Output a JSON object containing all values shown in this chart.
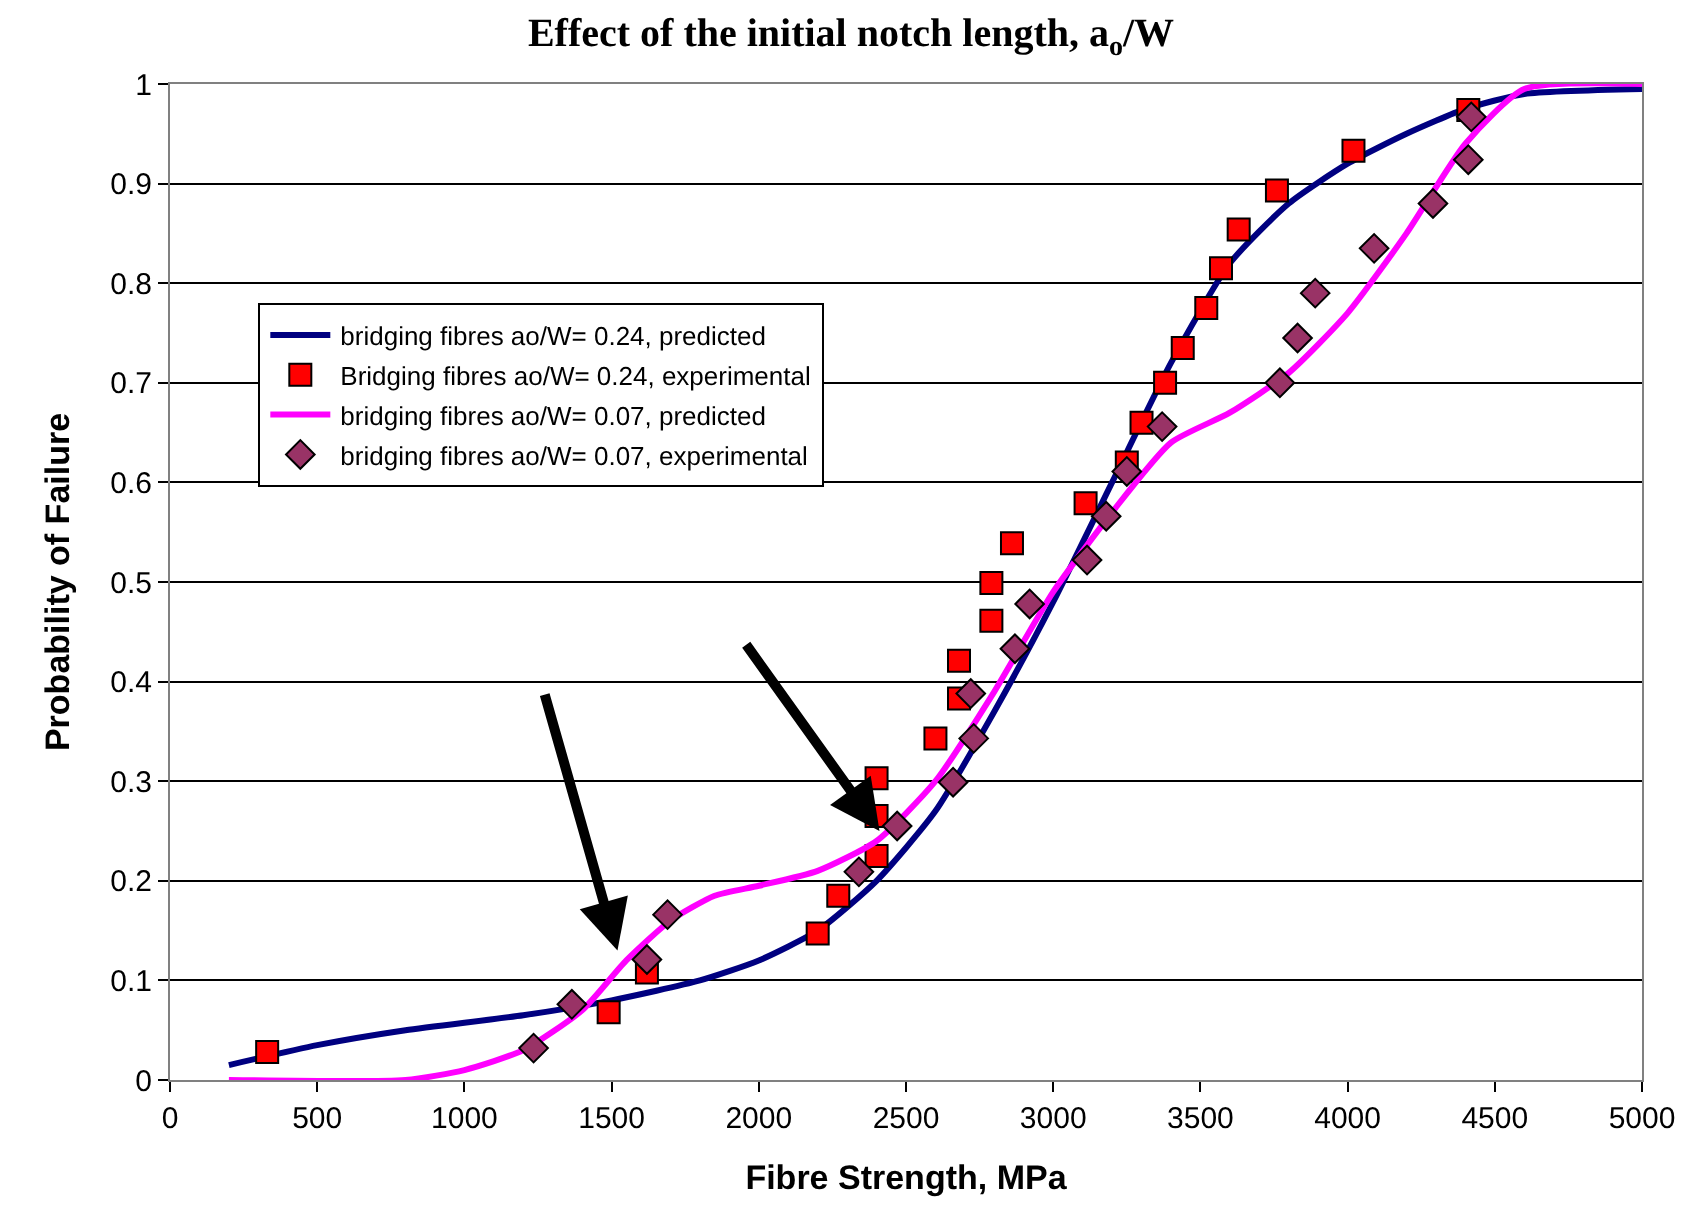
{
  "chart_data": {
    "type": "line",
    "title": "Effect of the initial notch length, a$_{o}$/W",
    "xlabel": "Fibre Strength, MPa",
    "ylabel": "Probability of Failure",
    "xlim": [
      0,
      5000
    ],
    "xticks": [
      0,
      500,
      1000,
      1500,
      2000,
      2500,
      3000,
      3500,
      4000,
      4500,
      5000
    ],
    "ylim": [
      0,
      1
    ],
    "yticks": [
      0,
      0.1,
      0.2,
      0.3,
      0.4,
      0.5,
      0.6,
      0.7,
      0.8,
      0.9,
      1
    ],
    "grid": "y",
    "legend": "top left",
    "series": [
      {
        "name": "bridging fibres ao/W= 0.24, predicted",
        "marker": "none",
        "color": "#000080",
        "x": [
          200,
          500,
          800,
          1200,
          1500,
          1800,
          2000,
          2200,
          2400,
          2600,
          2800,
          3000,
          3200,
          3400,
          3600,
          3800,
          4000,
          4200,
          4400,
          4600,
          5000
        ],
        "values": [
          0.015,
          0.035,
          0.05,
          0.065,
          0.08,
          0.1,
          0.12,
          0.15,
          0.2,
          0.27,
          0.37,
          0.48,
          0.6,
          0.72,
          0.82,
          0.88,
          0.92,
          0.95,
          0.975,
          0.99,
          0.995
        ]
      },
      {
        "name": "Bridging fibres ao/W= 0.24, experimental",
        "type": "scatter",
        "marker": "square",
        "color": "#ff0000",
        "x": [
          330,
          1490,
          1620,
          2200,
          2270,
          2400,
          2400,
          2400,
          2600,
          2680,
          2680,
          2790,
          2790,
          2860,
          3110,
          3250,
          3300,
          3380,
          3440,
          3520,
          3570,
          3630,
          3760,
          4020,
          4410
        ],
        "values": [
          0.028,
          0.068,
          0.108,
          0.147,
          0.185,
          0.225,
          0.265,
          0.303,
          0.343,
          0.383,
          0.421,
          0.461,
          0.499,
          0.539,
          0.579,
          0.62,
          0.66,
          0.7,
          0.735,
          0.775,
          0.815,
          0.854,
          0.893,
          0.933,
          0.974
        ]
      },
      {
        "name": "bridging fibres ao/W= 0.07, predicted",
        "marker": "none",
        "color": "#ff00ff",
        "x": [
          200,
          800,
          1000,
          1200,
          1400,
          1550,
          1700,
          1850,
          2000,
          2200,
          2400,
          2600,
          2800,
          3000,
          3200,
          3400,
          3600,
          3800,
          4000,
          4200,
          4400,
          4600,
          5000
        ],
        "values": [
          0,
          0,
          0.01,
          0.03,
          0.07,
          0.12,
          0.16,
          0.185,
          0.195,
          0.21,
          0.24,
          0.3,
          0.39,
          0.49,
          0.57,
          0.64,
          0.67,
          0.71,
          0.77,
          0.85,
          0.94,
          0.995,
          1.0
        ]
      },
      {
        "name": "bridging fibres ao/W= 0.07, experimental",
        "type": "scatter",
        "marker": "diamond",
        "color": "#993366",
        "x": [
          1235,
          1365,
          1620,
          1690,
          2340,
          2470,
          2660,
          2730,
          2720,
          2870,
          2920,
          3115,
          3180,
          3250,
          3370,
          3770,
          3830,
          3890,
          4090,
          4290,
          4410,
          4420
        ],
        "values": [
          0.032,
          0.076,
          0.121,
          0.166,
          0.209,
          0.255,
          0.299,
          0.343,
          0.388,
          0.433,
          0.478,
          0.522,
          0.566,
          0.611,
          0.656,
          0.7,
          0.745,
          0.79,
          0.835,
          0.88,
          0.924,
          0.967
        ]
      }
    ]
  }
}
